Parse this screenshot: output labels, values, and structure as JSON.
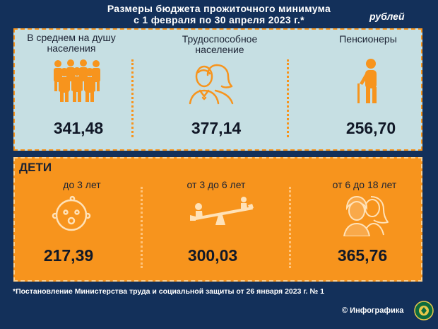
{
  "title": {
    "line1": "Размеры бюджета прожиточного минимума",
    "line2": "с 1 февраля по 30 апреля 2023 г.*"
  },
  "currency": "рублей",
  "top_panel": {
    "items": [
      {
        "label_line1": "В среднем на душу",
        "label_line2": "населения",
        "value": "341,48",
        "icon": "crowd-icon"
      },
      {
        "label_line1": "Трудоспособное",
        "label_line2": "население",
        "value": "377,14",
        "icon": "couple-icon"
      },
      {
        "label_line1": "Пенсионеры",
        "label_line2": "",
        "value": "256,70",
        "icon": "elderly-icon"
      }
    ]
  },
  "children_panel": {
    "heading": "ДЕТИ",
    "items": [
      {
        "label": "до 3 лет",
        "value": "217,39",
        "icon": "baby-face-icon"
      },
      {
        "label": "от 3 до 6 лет",
        "value": "300,03",
        "icon": "seesaw-icon"
      },
      {
        "label": "от 6 до 18 лет",
        "value": "365,76",
        "icon": "teens-icon"
      }
    ]
  },
  "footnote": "*Постановление Министерства труда и социальной защиты от 26 января 2023 г. № 1",
  "credit": "© Инфографика",
  "colors": {
    "background": "#13305a",
    "top_panel": "#c6dfe3",
    "accent_orange": "#f7941d",
    "icon_dark": "#2b2b2b"
  }
}
